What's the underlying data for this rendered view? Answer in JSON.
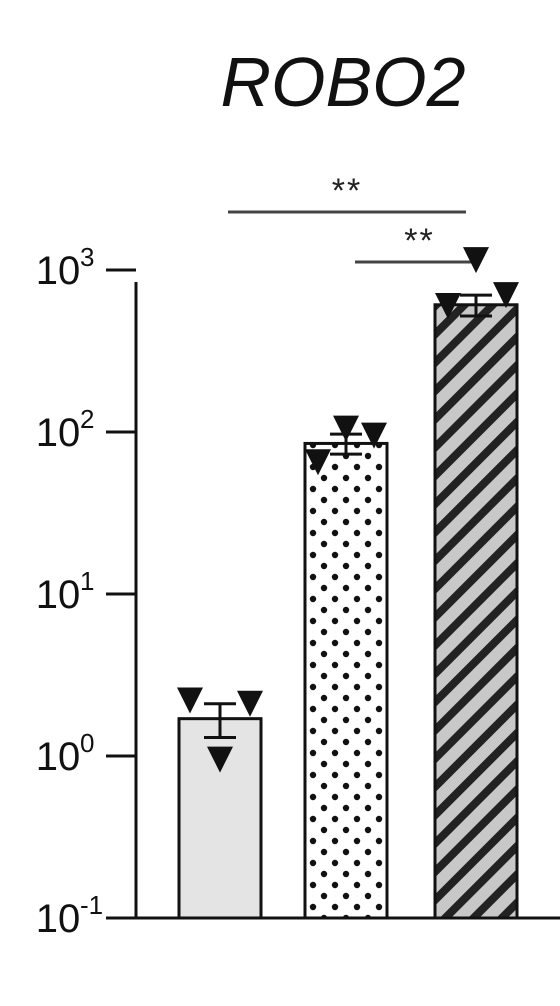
{
  "chart_data": {
    "type": "bar",
    "title": "ROBO2",
    "xlabel": "",
    "ylabel": "",
    "yscale": "log",
    "ylim": [
      0.1,
      1000
    ],
    "yticks": [
      {
        "base": "10",
        "exp": "3"
      },
      {
        "base": "10",
        "exp": "2"
      },
      {
        "base": "10",
        "exp": "1"
      },
      {
        "base": "10",
        "exp": "0"
      },
      {
        "base": "10",
        "exp": "-1"
      }
    ],
    "bars": [
      {
        "value": 1.7,
        "err": 0.4,
        "fill": "light-gray",
        "points": [
          2.2,
          2.1,
          0.95
        ]
      },
      {
        "value": 85,
        "err": 12,
        "fill": "dots",
        "points": [
          65,
          105,
          95
        ]
      },
      {
        "value": 610,
        "err": 90,
        "fill": "diagonal-hatch",
        "points": [
          1150,
          700,
          600
        ]
      }
    ],
    "significance": [
      {
        "from": 0,
        "to": 2,
        "label": "**"
      },
      {
        "from": 1,
        "to": 2,
        "label": "**"
      }
    ]
  }
}
